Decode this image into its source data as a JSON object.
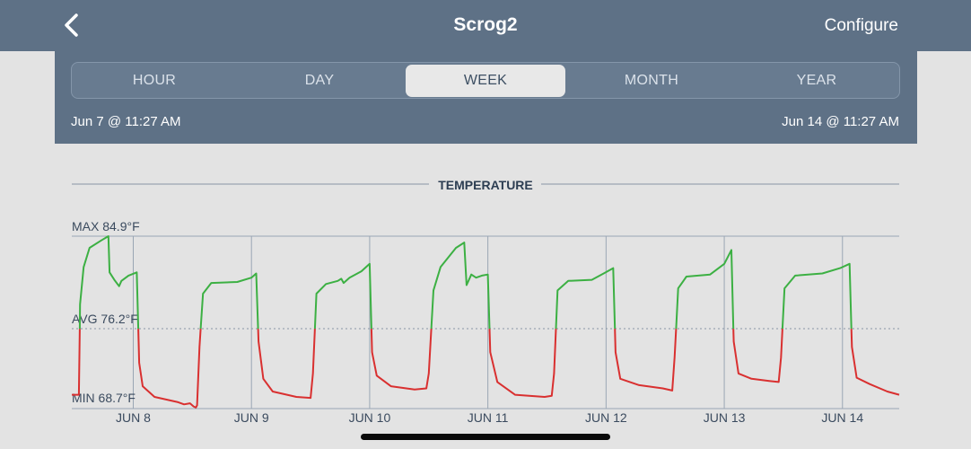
{
  "header": {
    "title": "Scrog2",
    "configure_label": "Configure",
    "back_icon": "chevron-left-icon"
  },
  "range_tabs": [
    {
      "label": "HOUR",
      "active": false
    },
    {
      "label": "DAY",
      "active": false
    },
    {
      "label": "WEEK",
      "active": true
    },
    {
      "label": "MONTH",
      "active": false
    },
    {
      "label": "YEAR",
      "active": false
    }
  ],
  "date_range": {
    "start": "Jun 7 @ 11:27 AM",
    "end": "Jun 14 @ 11:27 AM"
  },
  "colors": {
    "header_bg": "#5e7186",
    "above_avg": "#3cb043",
    "below_avg": "#d93030",
    "page_bg": "#e3e3e3"
  },
  "chart_data": {
    "type": "line",
    "title": "TEMPERATURE",
    "x_range": [
      "Jun 7 11:27 AM",
      "Jun 14 11:27 AM"
    ],
    "ylim": [
      68.7,
      84.9
    ],
    "unit": "°F",
    "reference_lines": [
      {
        "label": "MAX 84.9°F",
        "value": 84.9,
        "style": "solid"
      },
      {
        "label": "AVG 76.2°F",
        "value": 76.2,
        "style": "dotted"
      },
      {
        "label": "MIN 68.7°F",
        "value": 68.7,
        "style": "solid"
      }
    ],
    "x_ticks": [
      "JUN 8",
      "JUN 9",
      "JUN 10",
      "JUN 11",
      "JUN 12",
      "JUN 13",
      "JUN 14"
    ],
    "x_tick_days": [
      0.52,
      1.52,
      2.52,
      3.52,
      4.52,
      5.52,
      6.52
    ],
    "series": [
      {
        "points": [
          [
            0.0,
            70.0
          ],
          [
            0.06,
            70.0
          ],
          [
            0.07,
            78.5
          ],
          [
            0.1,
            82.0
          ],
          [
            0.15,
            83.8
          ],
          [
            0.25,
            84.5
          ],
          [
            0.31,
            84.9
          ],
          [
            0.32,
            81.5
          ],
          [
            0.36,
            80.8
          ],
          [
            0.4,
            80.2
          ],
          [
            0.42,
            80.7
          ],
          [
            0.48,
            81.2
          ],
          [
            0.55,
            81.5
          ],
          [
            0.57,
            73.0
          ],
          [
            0.6,
            70.8
          ],
          [
            0.7,
            69.8
          ],
          [
            0.9,
            69.3
          ],
          [
            0.95,
            69.1
          ],
          [
            1.0,
            69.2
          ],
          [
            1.03,
            68.9
          ],
          [
            1.05,
            68.8
          ],
          [
            1.06,
            69.0
          ],
          [
            1.08,
            74.5
          ],
          [
            1.11,
            79.5
          ],
          [
            1.18,
            80.5
          ],
          [
            1.4,
            80.6
          ],
          [
            1.52,
            81.0
          ],
          [
            1.56,
            81.4
          ],
          [
            1.58,
            75.0
          ],
          [
            1.62,
            71.5
          ],
          [
            1.7,
            70.3
          ],
          [
            1.9,
            69.8
          ],
          [
            2.02,
            69.7
          ],
          [
            2.04,
            72.0
          ],
          [
            2.07,
            79.5
          ],
          [
            2.15,
            80.4
          ],
          [
            2.25,
            80.7
          ],
          [
            2.28,
            80.9
          ],
          [
            2.3,
            80.5
          ],
          [
            2.35,
            81.0
          ],
          [
            2.45,
            81.6
          ],
          [
            2.52,
            82.3
          ],
          [
            2.54,
            74.0
          ],
          [
            2.58,
            71.8
          ],
          [
            2.7,
            70.8
          ],
          [
            2.9,
            70.5
          ],
          [
            3.0,
            70.6
          ],
          [
            3.02,
            72.0
          ],
          [
            3.06,
            79.8
          ],
          [
            3.12,
            82.0
          ],
          [
            3.25,
            83.8
          ],
          [
            3.32,
            84.3
          ],
          [
            3.34,
            80.3
          ],
          [
            3.38,
            81.3
          ],
          [
            3.42,
            81.0
          ],
          [
            3.47,
            81.2
          ],
          [
            3.52,
            81.3
          ],
          [
            3.54,
            74.0
          ],
          [
            3.6,
            71.2
          ],
          [
            3.75,
            70.0
          ],
          [
            4.0,
            69.8
          ],
          [
            4.06,
            69.9
          ],
          [
            4.08,
            72.0
          ],
          [
            4.11,
            79.8
          ],
          [
            4.2,
            80.7
          ],
          [
            4.4,
            80.8
          ],
          [
            4.5,
            81.4
          ],
          [
            4.58,
            81.9
          ],
          [
            4.6,
            74.0
          ],
          [
            4.64,
            71.5
          ],
          [
            4.8,
            70.9
          ],
          [
            5.0,
            70.6
          ],
          [
            5.08,
            70.4
          ],
          [
            5.1,
            73.5
          ],
          [
            5.13,
            80.0
          ],
          [
            5.2,
            81.1
          ],
          [
            5.4,
            81.3
          ],
          [
            5.52,
            82.3
          ],
          [
            5.58,
            83.6
          ],
          [
            5.6,
            75.0
          ],
          [
            5.64,
            72.0
          ],
          [
            5.75,
            71.5
          ],
          [
            5.9,
            71.3
          ],
          [
            5.98,
            71.2
          ],
          [
            6.0,
            73.5
          ],
          [
            6.03,
            80.0
          ],
          [
            6.12,
            81.2
          ],
          [
            6.35,
            81.4
          ],
          [
            6.5,
            81.9
          ],
          [
            6.58,
            82.3
          ],
          [
            6.6,
            74.5
          ],
          [
            6.64,
            71.6
          ],
          [
            6.75,
            71.0
          ],
          [
            6.9,
            70.3
          ],
          [
            7.0,
            70.0
          ]
        ]
      }
    ]
  }
}
